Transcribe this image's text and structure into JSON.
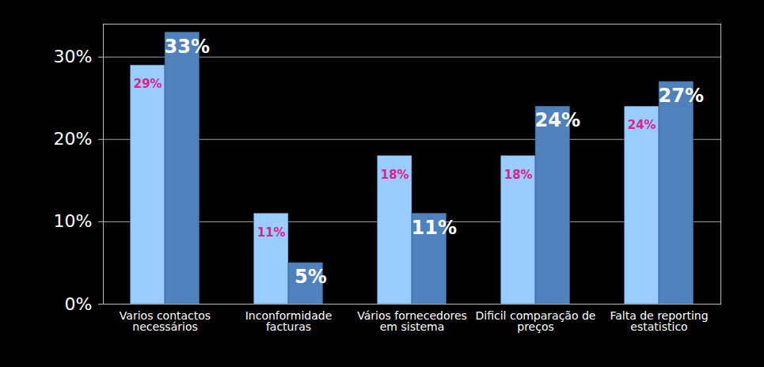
{
  "chart_data": {
    "type": "bar",
    "categories": [
      "Varios contactos necessários",
      "Inconformidade facturas",
      "Vários fornecedores em sistema",
      "Dificil comparação de preços",
      "Falta de reporting estatistico"
    ],
    "series": [
      {
        "color": "#99ccff",
        "values": [
          29,
          11,
          18,
          18,
          24
        ],
        "value_labels": [
          "29%",
          "11%",
          "18%",
          "18%",
          "24%"
        ]
      },
      {
        "color": "#4f81bd",
        "values": [
          33,
          5,
          11,
          24,
          27
        ],
        "value_labels": [
          "33%",
          "5%",
          "11%",
          "24%",
          "27%"
        ]
      }
    ],
    "ylim": [
      0,
      34
    ],
    "yticks": [
      {
        "value": 0,
        "label": "0%"
      },
      {
        "value": 10,
        "label": "10%"
      },
      {
        "value": 20,
        "label": "20%"
      },
      {
        "value": 30,
        "label": "30%"
      }
    ],
    "grid": true,
    "data_labels": true
  }
}
